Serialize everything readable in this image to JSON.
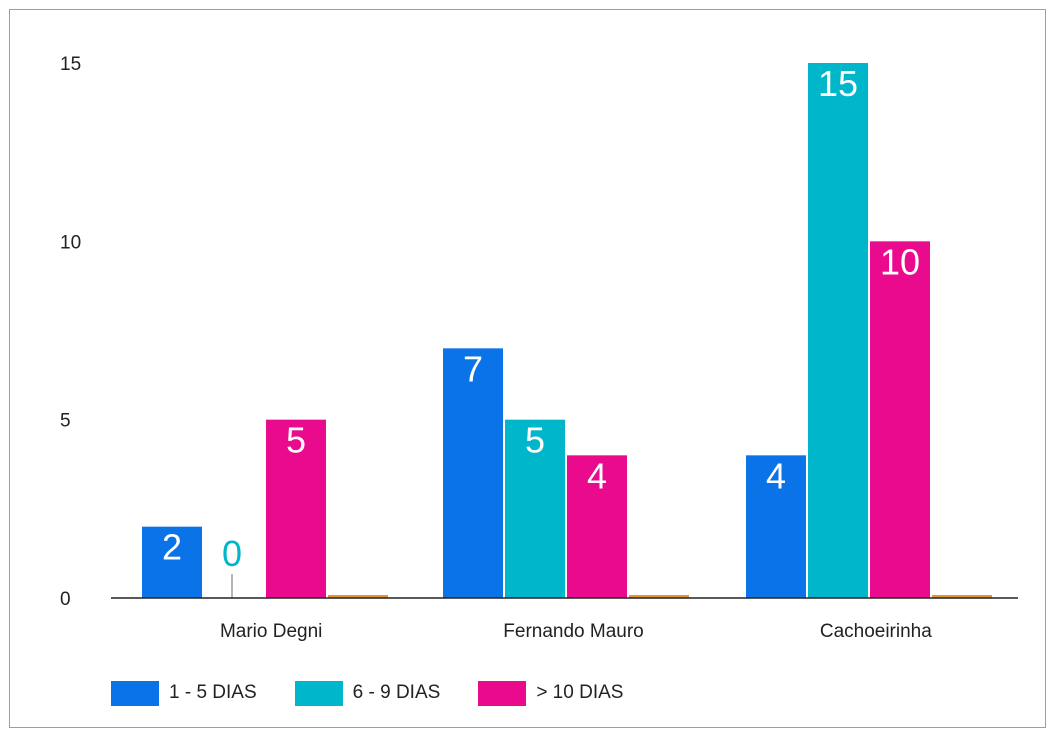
{
  "chart_data": {
    "type": "bar",
    "categories": [
      "Mario Degni",
      "Fernando Mauro",
      "Cachoeirinha"
    ],
    "series": [
      {
        "name": "1 - 5 DIAS",
        "values": [
          2,
          7,
          4
        ],
        "color": "#0a73e8"
      },
      {
        "name": "6 - 9 DIAS",
        "values": [
          0,
          5,
          15
        ],
        "color": "#00b6ca"
      },
      {
        "name": "> 10 DIAS",
        "values": [
          5,
          4,
          10
        ],
        "color": "#ea0a8e"
      }
    ],
    "extra_series_color": "#e8962e",
    "ylim": [
      0,
      15
    ],
    "yticks": [
      0,
      5,
      10,
      15
    ],
    "title": "",
    "xlabel": "",
    "ylabel": "",
    "data_labels": true,
    "legend_position": "bottom-left",
    "grid": false
  }
}
